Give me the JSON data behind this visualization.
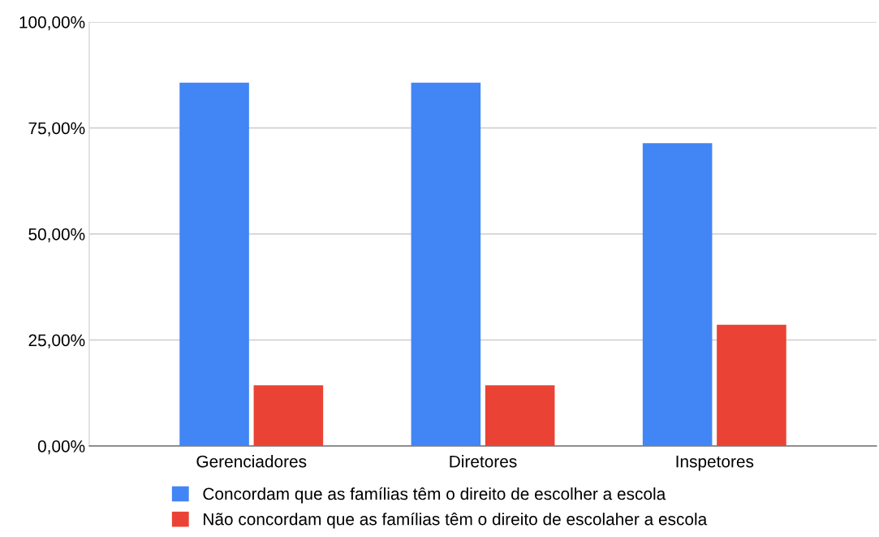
{
  "chart_data": {
    "type": "bar",
    "categories": [
      "Gerenciadores",
      "Diretores",
      "Inspetores"
    ],
    "series": [
      {
        "name": "Concordam que as famílias têm o direito de escolher a escola",
        "color": "#4285f4",
        "values": [
          85.7,
          85.7,
          71.4
        ]
      },
      {
        "name": "Não concordam que as famílias têm o direito de escolaher a escola",
        "color": "#ea4335",
        "values": [
          14.3,
          14.3,
          28.6
        ]
      }
    ],
    "ylim": [
      0,
      100
    ],
    "yticks": [
      {
        "value": 0,
        "label": "0,00%"
      },
      {
        "value": 25,
        "label": "25,00%"
      },
      {
        "value": 50,
        "label": "50,00%"
      },
      {
        "value": 75,
        "label": "75,00%"
      },
      {
        "value": 100,
        "label": "100,00%"
      }
    ],
    "grid": "y",
    "legend": "bottom"
  }
}
